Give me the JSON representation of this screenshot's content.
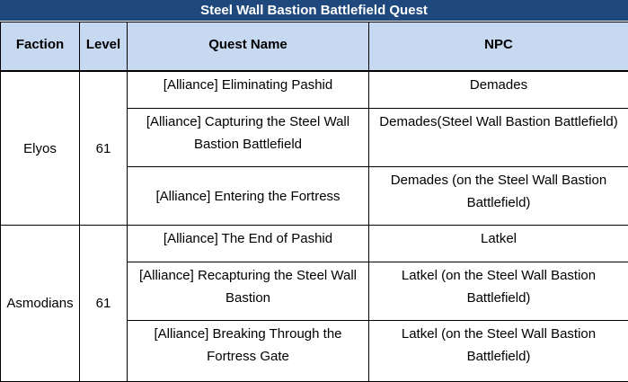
{
  "title": "Steel Wall Bastion Battlefield Quest",
  "headers": {
    "faction": "Faction",
    "level": "Level",
    "quest": "Quest Name",
    "npc": "NPC"
  },
  "groups": [
    {
      "faction": "Elyos",
      "level": "61",
      "rows": [
        {
          "quest": "[Alliance] Eliminating Pashid",
          "npc": "Demades"
        },
        {
          "quest": "[Alliance] Capturing the Steel Wall Bastion Battlefield",
          "npc": "Demades(Steel Wall Bastion Battlefield)"
        },
        {
          "quest": "[Alliance] Entering the Fortress",
          "npc": "Demades (on the Steel Wall Bastion Battlefield)"
        }
      ]
    },
    {
      "faction": "Asmodians",
      "level": "61",
      "rows": [
        {
          "quest": "[Alliance] The End of Pashid",
          "npc": "Latkel"
        },
        {
          "quest": "[Alliance] Recapturing the Steel Wall Bastion",
          "npc": "Latkel (on the Steel Wall Bastion Battlefield)"
        },
        {
          "quest": "[Alliance] Breaking Through the Fortress Gate",
          "npc": "Latkel (on the Steel Wall Bastion Battlefield)"
        }
      ]
    }
  ]
}
